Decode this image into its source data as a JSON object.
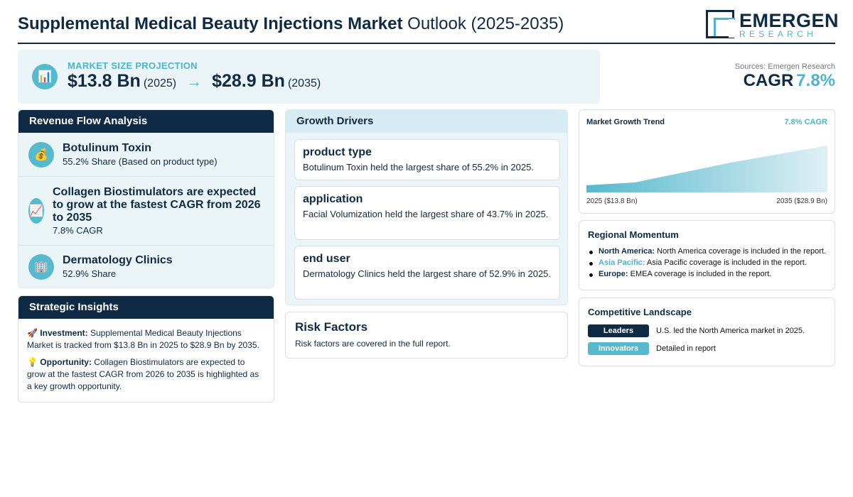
{
  "header": {
    "title_bold": "Supplemental Medical Beauty Injections Market",
    "title_light": "Outlook (2025-2035)",
    "logo_main": "EMERGEN",
    "logo_sub": "RESEARCH"
  },
  "banner": {
    "icon": "bar-chart-icon",
    "label": "MARKET SIZE PROJECTION",
    "start_value": "$13.8 Bn",
    "start_year": "(2025)",
    "arrow": "→",
    "end_value": "$28.9 Bn",
    "end_year": "(2035)"
  },
  "summary": {
    "sources": "Sources: Emergen Research",
    "cagr_label": "CAGR",
    "cagr_value": "7.8%"
  },
  "revenue_flow": {
    "title": "Revenue Flow Analysis",
    "items": [
      {
        "icon": "money-bag-icon",
        "title": "Botulinum Toxin",
        "sub": "55.2% Share (Based on product type)"
      },
      {
        "icon": "trending-up-icon",
        "title": "Collagen Biostimulators are expected to grow at the fastest CAGR from 2026 to 2035",
        "sub": "7.8% CAGR"
      },
      {
        "icon": "building-icon",
        "title": "Dermatology Clinics",
        "sub": "52.9% Share"
      }
    ]
  },
  "strategic_insights": {
    "title": "Strategic Insights",
    "investment_label": "Investment:",
    "investment_text": "Supplemental Medical Beauty Injections Market is tracked from $13.8 Bn in 2025 to $28.9 Bn by 2035.",
    "opportunity_label": "Opportunity:",
    "opportunity_text": "Collagen Biostimulators are expected to grow at the fastest CAGR from 2026 to 2035 is highlighted as a key growth opportunity."
  },
  "growth_drivers": {
    "title": "Growth Drivers",
    "items": [
      {
        "title": "product type",
        "text": "Botulinum Toxin held the largest share of 55.2% in 2025."
      },
      {
        "title": "application",
        "text": "Facial Volumization held the largest share of 43.7% in 2025."
      },
      {
        "title": "end user",
        "text": "Dermatology Clinics held the largest share of 52.9% in 2025."
      }
    ]
  },
  "risk_factors": {
    "title": "Risk Factors",
    "text": "Risk factors are covered in the full report."
  },
  "trend": {
    "title": "Market Growth Trend",
    "cagr": "7.8% CAGR",
    "start_label": "2025 ($13.8 Bn)",
    "end_label": "2035 ($28.9 Bn)"
  },
  "chart_data": {
    "type": "area",
    "x": [
      2025,
      2035
    ],
    "values": [
      13.8,
      28.9
    ],
    "title": "Market Growth Trend",
    "colors": [
      "#56b9cd"
    ]
  },
  "regional": {
    "title": "Regional Momentum",
    "items": [
      {
        "region": "North America:",
        "text": "North America coverage is included in the report.",
        "color": "#0f2a44"
      },
      {
        "region": "Asia Pacific:",
        "text": "Asia Pacific coverage is included in the report.",
        "color": "#4fb3c9"
      },
      {
        "region": "Europe:",
        "text": "EMEA coverage is included in the report.",
        "color": "#0f2a44"
      }
    ]
  },
  "competitive": {
    "title": "Competitive Landscape",
    "rows": [
      {
        "badge": "Leaders",
        "text": "U.S. led the North America market in 2025."
      },
      {
        "badge": "Innovators",
        "text": "Detailed in report"
      }
    ]
  },
  "colors": {
    "navy": "#0f2a44",
    "teal": "#4fb3c9",
    "light_bg": "#ebf5f8"
  }
}
